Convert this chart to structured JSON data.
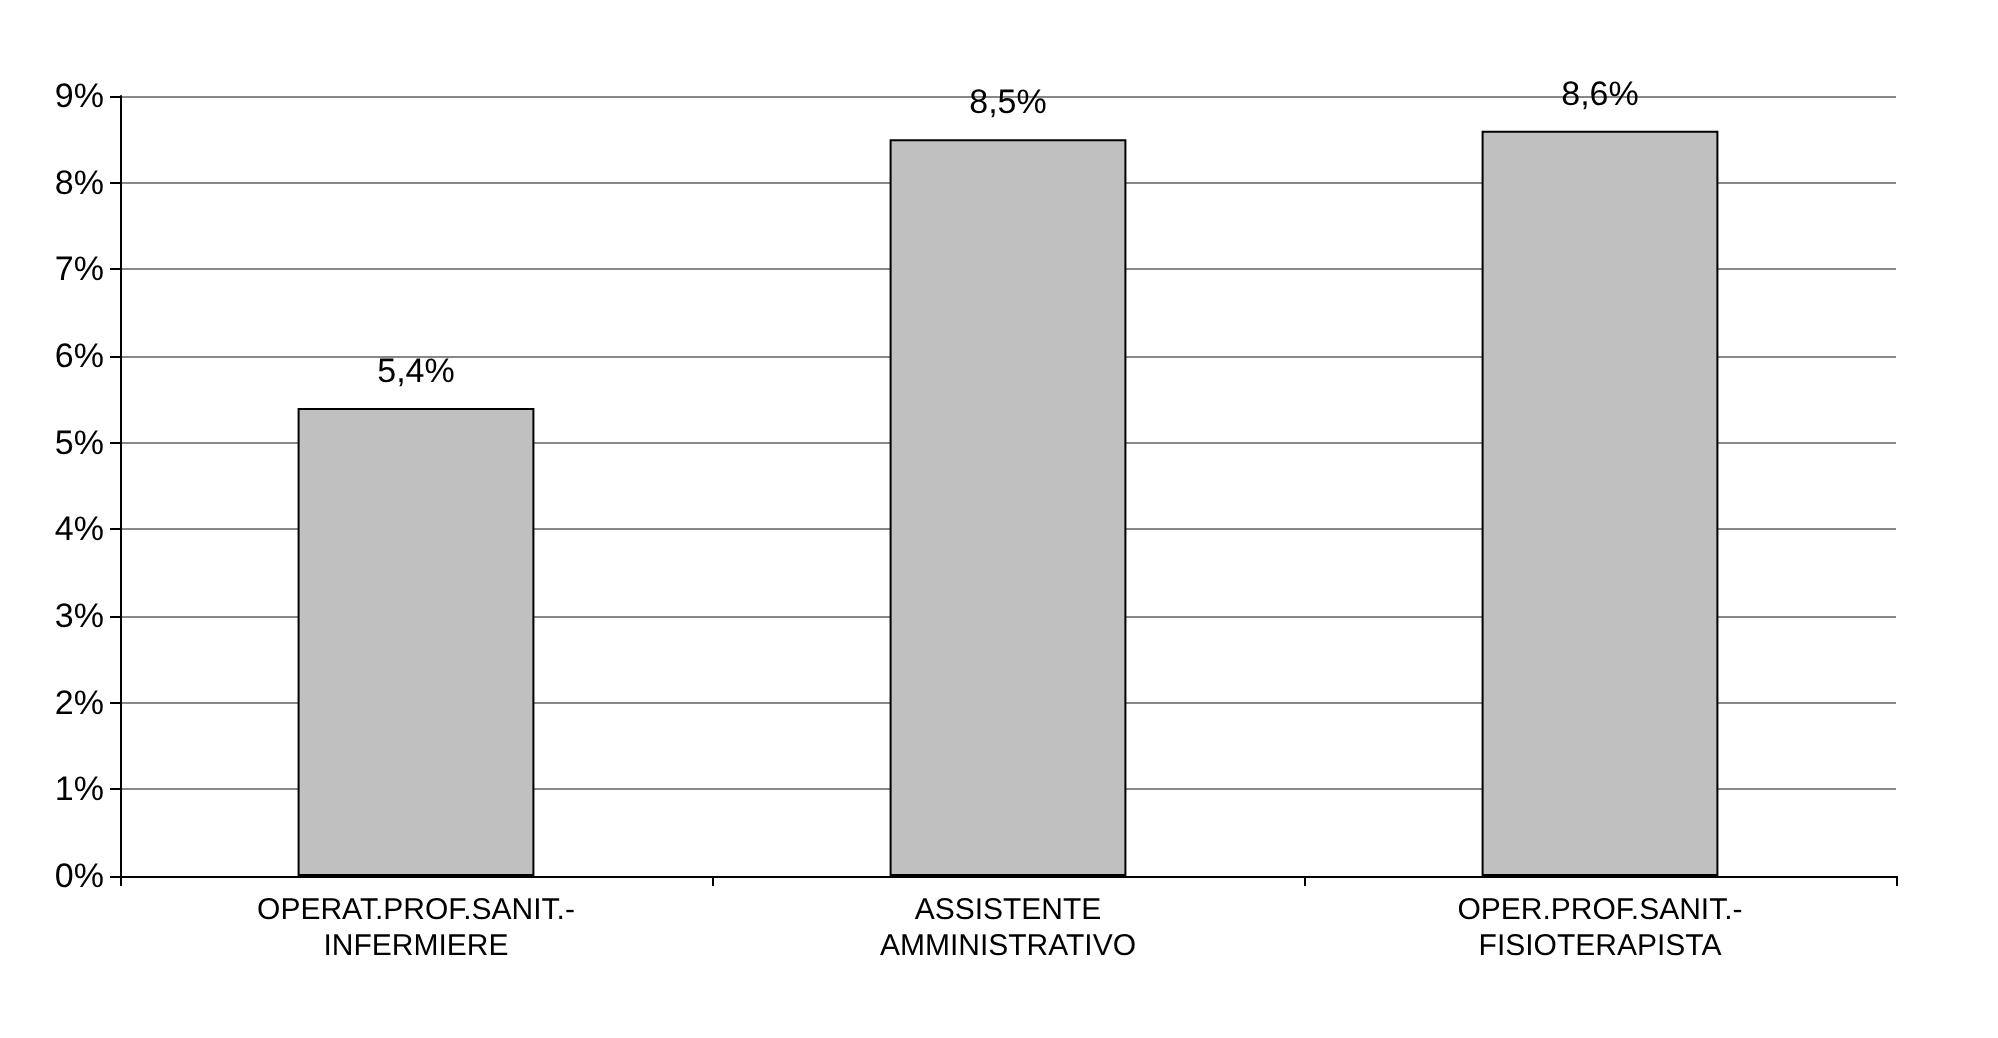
{
  "chart_data": {
    "type": "bar",
    "categories": [
      "OPERAT.PROF.SANIT.-\nINFERMIERE",
      "ASSISTENTE\nAMMINISTRATIVO",
      "OPER.PROF.SANIT.-\nFISIOTERAPISTA"
    ],
    "values": [
      5.4,
      8.5,
      8.6
    ],
    "value_labels": [
      "5,4%",
      "8,5%",
      "8,6%"
    ],
    "color": "#c0c0c0",
    "ylim": [
      0,
      9
    ],
    "yticks": [
      {
        "value": 0,
        "label": "0%"
      },
      {
        "value": 1,
        "label": "1%"
      },
      {
        "value": 2,
        "label": "2%"
      },
      {
        "value": 3,
        "label": "3%"
      },
      {
        "value": 4,
        "label": "4%"
      },
      {
        "value": 5,
        "label": "5%"
      },
      {
        "value": 6,
        "label": "6%"
      },
      {
        "value": 7,
        "label": "7%"
      },
      {
        "value": 8,
        "label": "8%"
      },
      {
        "value": 9,
        "label": "9%"
      }
    ],
    "grid": "y"
  }
}
